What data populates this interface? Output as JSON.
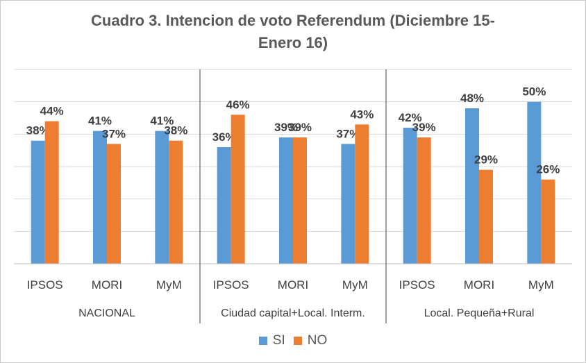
{
  "chart_data": {
    "type": "bar",
    "title": "Cuadro 3. Intencion de voto Referendum (Diciembre 15-\nEnero 16)",
    "title_lines": [
      "Cuadro 3. Intencion de voto Referendum (Diciembre 15-",
      "Enero 16)"
    ],
    "groups": [
      {
        "label": "NACIONAL",
        "categories": [
          "IPSOS",
          "MORI",
          "MyM"
        ]
      },
      {
        "label": "Ciudad capital+Local. Interm.",
        "categories": [
          "IPSOS",
          "MORI",
          "MyM"
        ]
      },
      {
        "label": "Local. Pequeña+Rural",
        "categories": [
          "IPSOS",
          "MORI",
          "MyM"
        ]
      }
    ],
    "series": [
      {
        "name": "SI",
        "color": "#5b9bd5",
        "values": [
          38,
          41,
          41,
          36,
          39,
          37,
          42,
          48,
          50
        ]
      },
      {
        "name": "NO",
        "color": "#ed7d31",
        "values": [
          44,
          37,
          38,
          46,
          39,
          43,
          39,
          29,
          26
        ]
      }
    ],
    "value_suffix": "%",
    "ylim": [
      0,
      60
    ],
    "grid": true,
    "legend_position": "bottom"
  }
}
